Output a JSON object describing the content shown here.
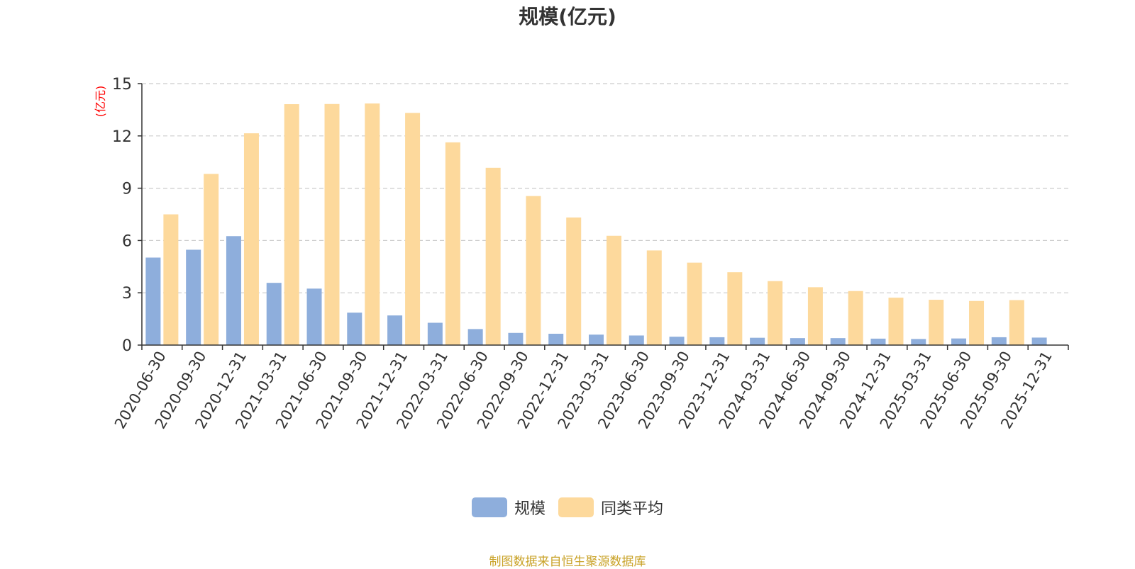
{
  "chart_data": {
    "type": "bar",
    "title": "规模(亿元)",
    "ylabel": "(亿元)",
    "xlabel": "",
    "ylim": [
      0,
      15
    ],
    "yticks": [
      0,
      3,
      6,
      9,
      12,
      15
    ],
    "grid": true,
    "legend_position": "bottom",
    "categories": [
      "2020-06-30",
      "2020-09-30",
      "2020-12-31",
      "2021-03-31",
      "2021-06-30",
      "2021-09-30",
      "2021-12-31",
      "2022-03-31",
      "2022-06-30",
      "2022-09-30",
      "2022-12-31",
      "2023-03-31",
      "2023-06-30",
      "2023-09-30",
      "2023-12-31",
      "2024-03-31",
      "2024-06-30",
      "2024-09-30",
      "2024-12-31",
      "2025-03-31",
      "2025-06-30",
      "2025-09-30",
      "2025-12-31"
    ],
    "series": [
      {
        "name": "规模",
        "color": "#8eaedc",
        "values": [
          5.02,
          5.47,
          6.25,
          3.57,
          3.24,
          1.86,
          1.7,
          1.28,
          0.92,
          0.7,
          0.65,
          0.6,
          0.55,
          0.48,
          0.45,
          0.42,
          0.4,
          0.4,
          0.37,
          0.35,
          0.38,
          0.45,
          0.43
        ]
      },
      {
        "name": "同类平均",
        "color": "#fdd99c",
        "values": [
          7.5,
          9.82,
          12.15,
          13.82,
          13.83,
          13.86,
          13.32,
          11.63,
          10.17,
          8.55,
          7.32,
          6.27,
          5.43,
          4.73,
          4.18,
          3.67,
          3.32,
          3.1,
          2.72,
          2.6,
          2.53,
          2.58,
          null
        ]
      }
    ]
  },
  "source_note": "制图数据来自恒生聚源数据库",
  "colors": {
    "axis_label": "#ff0000",
    "text": "#333333",
    "grid": "#cccccc",
    "source": "#c9a227"
  }
}
